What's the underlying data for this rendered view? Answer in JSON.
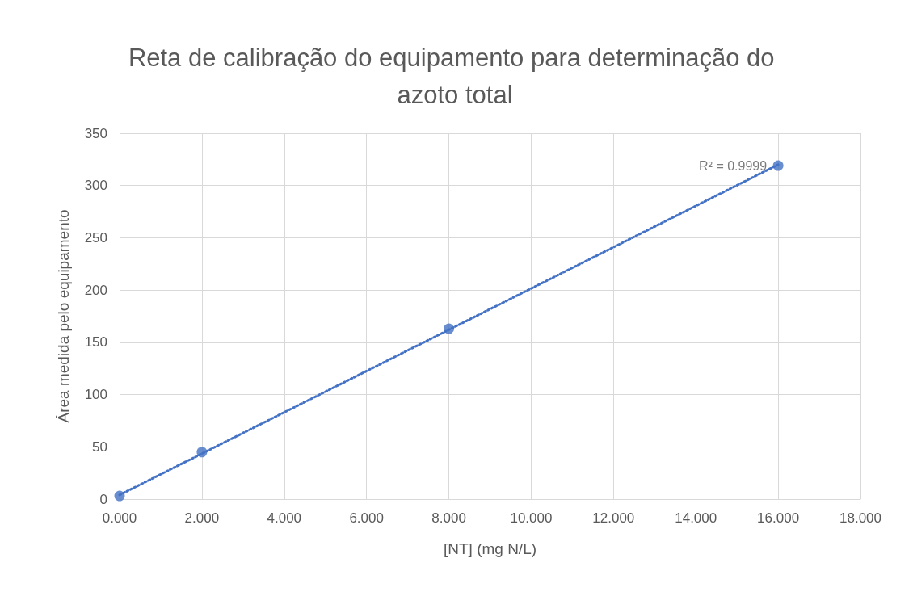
{
  "chart_data": {
    "type": "scatter",
    "title": "Reta de calibração do equipamento para determinação do azoto total",
    "xlabel": "[NT] (mg N/L)",
    "ylabel": "Área medida pelo equipamento",
    "series": [
      {
        "color": "#4472c4",
        "x": [
          0,
          2,
          8,
          16
        ],
        "values": [
          3,
          45,
          163,
          319
        ],
        "marker": "circle"
      },
      {
        "type": "line",
        "color": "#4472c4",
        "x": [
          0,
          16
        ],
        "values": [
          4,
          320
        ],
        "marker": "none",
        "line_style": "dotted"
      }
    ],
    "annotations": [
      {
        "text": "R² = 0.9999",
        "x": 16,
        "y": 319
      }
    ],
    "xlim": [
      0,
      18
    ],
    "xticks": [
      {
        "value": 0,
        "label": "0.000"
      },
      {
        "value": 2,
        "label": "2.000"
      },
      {
        "value": 4,
        "label": "4.000"
      },
      {
        "value": 6,
        "label": "6.000"
      },
      {
        "value": 8,
        "label": "8.000"
      },
      {
        "value": 10,
        "label": "10.000"
      },
      {
        "value": 12,
        "label": "12.000"
      },
      {
        "value": 14,
        "label": "14.000"
      },
      {
        "value": 16,
        "label": "16.000"
      },
      {
        "value": 18,
        "label": "18.000"
      }
    ],
    "ylim": [
      0,
      350
    ],
    "yticks": [
      0,
      50,
      100,
      150,
      200,
      250,
      300,
      350
    ],
    "grid": true
  }
}
